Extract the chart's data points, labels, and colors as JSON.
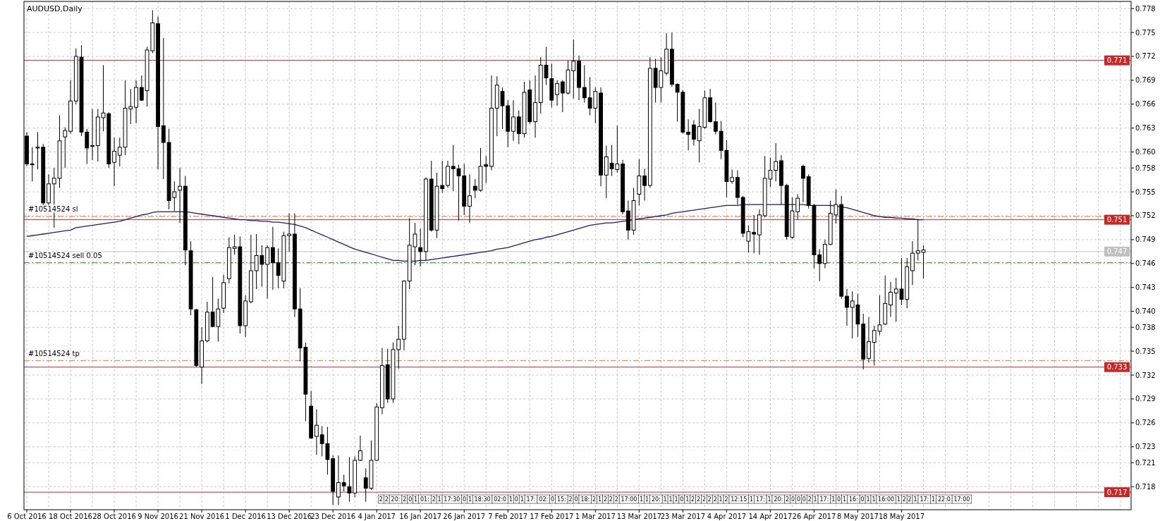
{
  "chart_data": {
    "type": "candlestick",
    "title": "AUDUSD,Daily",
    "categories": [
      "6 Oct 2016",
      null,
      null,
      null,
      null,
      null,
      null,
      null,
      "18 Oct 2016",
      null,
      null,
      null,
      null,
      null,
      null,
      null,
      "28 Oct 2016",
      null,
      null,
      null,
      null,
      null,
      null,
      null,
      "9 Nov 2016",
      null,
      null,
      null,
      null,
      null,
      null,
      null,
      "21 Nov 2016",
      null,
      null,
      null,
      null,
      null,
      null,
      null,
      "1 Dec 2016",
      null,
      null,
      null,
      null,
      null,
      null,
      null,
      "13 Dec 2016",
      null,
      null,
      null,
      null,
      null,
      null,
      null,
      "23 Dec 2016",
      null,
      null,
      null,
      null,
      null,
      null,
      null,
      "4 Jan 2017",
      null,
      null,
      null,
      null,
      null,
      null,
      null,
      "16 Jan 2017",
      null,
      null,
      null,
      null,
      null,
      null,
      null,
      "26 Jan 2017",
      null,
      null,
      null,
      null,
      null,
      null,
      null,
      "7 Feb 2017",
      null,
      null,
      null,
      null,
      null,
      null,
      null,
      "17 Feb 2017",
      null,
      null,
      null,
      null,
      null,
      null,
      null,
      "1 Mar 2017",
      null,
      null,
      null,
      null,
      null,
      null,
      null,
      "13 Mar 2017",
      null,
      null,
      null,
      null,
      null,
      null,
      null,
      "23 Mar 2017",
      null,
      null,
      null,
      null,
      null,
      null,
      null,
      "4 Apr 2017",
      null,
      null,
      null,
      null,
      null,
      null,
      null,
      "14 Apr 2017",
      null,
      null,
      null,
      null,
      null,
      null,
      null,
      "26 Apr 2017",
      null,
      null,
      null,
      null,
      null,
      null,
      null,
      "8 May 2017",
      null,
      null,
      null,
      null,
      null,
      null,
      null,
      "18 May 2017",
      null,
      null,
      null,
      null
    ],
    "ohlc": [
      [
        0.762,
        0.7625,
        0.7582,
        0.7585
      ],
      [
        0.7585,
        0.7606,
        0.7563,
        0.7584
      ],
      [
        0.7606,
        0.7625,
        0.7578,
        0.7605
      ],
      [
        0.7606,
        0.761,
        0.7532,
        0.7536
      ],
      [
        0.7536,
        0.7572,
        0.7533,
        0.756
      ],
      [
        0.756,
        0.758,
        0.7505,
        0.7567
      ],
      [
        0.7567,
        0.7646,
        0.7555,
        0.7614
      ],
      [
        0.7619,
        0.7631,
        0.758,
        0.7627
      ],
      [
        0.7626,
        0.769,
        0.7623,
        0.7664
      ],
      [
        0.7664,
        0.773,
        0.766,
        0.772
      ],
      [
        0.7719,
        0.7734,
        0.762,
        0.7625
      ],
      [
        0.7625,
        0.7629,
        0.7585,
        0.7605
      ],
      [
        0.7607,
        0.7654,
        0.759,
        0.7608
      ],
      [
        0.7608,
        0.7654,
        0.7588,
        0.7644
      ],
      [
        0.7643,
        0.7709,
        0.7626,
        0.7649
      ],
      [
        0.7648,
        0.765,
        0.758,
        0.7585
      ],
      [
        0.7587,
        0.7618,
        0.7557,
        0.7601
      ],
      [
        0.7596,
        0.7618,
        0.7582,
        0.7606
      ],
      [
        0.7606,
        0.769,
        0.7596,
        0.7655
      ],
      [
        0.7654,
        0.7679,
        0.7635,
        0.7657
      ],
      [
        0.7656,
        0.769,
        0.7636,
        0.7681
      ],
      [
        0.7681,
        0.7696,
        0.7664,
        0.7665
      ],
      [
        0.7677,
        0.7732,
        0.7657,
        0.7728
      ],
      [
        0.7727,
        0.7778,
        0.7724,
        0.7762
      ],
      [
        0.7761,
        0.777,
        0.7578,
        0.7632
      ],
      [
        0.7633,
        0.7743,
        0.7566,
        0.7612
      ],
      [
        0.7612,
        0.7629,
        0.7528,
        0.7539
      ],
      [
        0.7543,
        0.7563,
        0.7526,
        0.755
      ],
      [
        0.7552,
        0.758,
        0.7511,
        0.7557
      ],
      [
        0.7557,
        0.757,
        0.7458,
        0.7477
      ],
      [
        0.7476,
        0.7488,
        0.7395,
        0.7403
      ],
      [
        0.7402,
        0.7403,
        0.733,
        0.7332
      ],
      [
        0.733,
        0.738,
        0.7309,
        0.7363
      ],
      [
        0.7363,
        0.7412,
        0.7361,
        0.7399
      ],
      [
        0.7399,
        0.7443,
        0.738,
        0.7381
      ],
      [
        0.7381,
        0.7416,
        0.7362,
        0.7403
      ],
      [
        0.7404,
        0.7446,
        0.7398,
        0.7436
      ],
      [
        0.7441,
        0.7493,
        0.7435,
        0.748
      ],
      [
        0.7479,
        0.7496,
        0.7471,
        0.7481
      ],
      [
        0.7481,
        0.7494,
        0.7372,
        0.7382
      ],
      [
        0.7382,
        0.742,
        0.7368,
        0.7413
      ],
      [
        0.7412,
        0.7496,
        0.741,
        0.7451
      ],
      [
        0.7451,
        0.7497,
        0.7428,
        0.747
      ],
      [
        0.747,
        0.7483,
        0.7431,
        0.7459
      ],
      [
        0.7459,
        0.7483,
        0.7416,
        0.748
      ],
      [
        0.748,
        0.7506,
        0.7427,
        0.7461
      ],
      [
        0.7461,
        0.7479,
        0.7429,
        0.7445
      ],
      [
        0.7438,
        0.75,
        0.7429,
        0.7495
      ],
      [
        0.7495,
        0.7523,
        0.7475,
        0.7497
      ],
      [
        0.7497,
        0.7523,
        0.7393,
        0.7403
      ],
      [
        0.7403,
        0.7429,
        0.7337,
        0.7354
      ],
      [
        0.7355,
        0.7361,
        0.7262,
        0.7296
      ],
      [
        0.7281,
        0.73,
        0.724,
        0.7241
      ],
      [
        0.7243,
        0.7277,
        0.722,
        0.7257
      ],
      [
        0.7245,
        0.7256,
        0.7218,
        0.7234
      ],
      [
        0.7234,
        0.7255,
        0.7195,
        0.7214
      ],
      [
        0.7215,
        0.7219,
        0.7157,
        0.7174
      ],
      [
        0.7167,
        0.7219,
        0.7157,
        0.7185
      ],
      [
        0.7185,
        0.7195,
        0.7174,
        0.7181
      ],
      [
        0.718,
        0.7217,
        0.7161,
        0.7172
      ],
      [
        0.7172,
        0.7218,
        0.7167,
        0.7213
      ],
      [
        0.7213,
        0.7244,
        0.7212,
        0.7225
      ],
      [
        0.7191,
        0.7203,
        0.7161,
        0.7178
      ],
      [
        0.7178,
        0.7238,
        0.7176,
        0.7213
      ],
      [
        0.7213,
        0.7285,
        0.7212,
        0.728
      ],
      [
        0.7279,
        0.7354,
        0.7271,
        0.7332
      ],
      [
        0.7333,
        0.7353,
        0.7285,
        0.729
      ],
      [
        0.729,
        0.7361,
        0.7285,
        0.7352
      ],
      [
        0.7352,
        0.7382,
        0.7328,
        0.7365
      ],
      [
        0.7365,
        0.7439,
        0.7351,
        0.7438
      ],
      [
        0.7438,
        0.7517,
        0.7428,
        0.7483
      ],
      [
        0.7481,
        0.7511,
        0.7458,
        0.7497
      ],
      [
        0.748,
        0.7504,
        0.7456,
        0.7475
      ],
      [
        0.7475,
        0.7568,
        0.7464,
        0.7566
      ],
      [
        0.7566,
        0.7589,
        0.75,
        0.7502
      ],
      [
        0.7502,
        0.7574,
        0.7492,
        0.7557
      ],
      [
        0.7558,
        0.7589,
        0.7549,
        0.7554
      ],
      [
        0.7558,
        0.7589,
        0.7555,
        0.7582
      ],
      [
        0.7582,
        0.7609,
        0.7551,
        0.7579
      ],
      [
        0.7579,
        0.7584,
        0.7514,
        0.757
      ],
      [
        0.757,
        0.7585,
        0.7521,
        0.7532
      ],
      [
        0.7532,
        0.7572,
        0.7511,
        0.7545
      ],
      [
        0.7557,
        0.7566,
        0.7542,
        0.7552
      ],
      [
        0.7552,
        0.7605,
        0.755,
        0.7582
      ],
      [
        0.7584,
        0.7595,
        0.7561,
        0.7582
      ],
      [
        0.7582,
        0.7696,
        0.7577,
        0.7655
      ],
      [
        0.7655,
        0.7695,
        0.762,
        0.7684
      ],
      [
        0.7676,
        0.7681,
        0.7629,
        0.7658
      ],
      [
        0.7658,
        0.7665,
        0.7606,
        0.7626
      ],
      [
        0.7626,
        0.7665,
        0.7614,
        0.7644
      ],
      [
        0.7644,
        0.7652,
        0.761,
        0.7623
      ],
      [
        0.7623,
        0.7688,
        0.7618,
        0.7675
      ],
      [
        0.7678,
        0.769,
        0.7635,
        0.7638
      ],
      [
        0.7638,
        0.7696,
        0.7618,
        0.7662
      ],
      [
        0.7662,
        0.7719,
        0.7648,
        0.7709
      ],
      [
        0.7709,
        0.7732,
        0.7684,
        0.7693
      ],
      [
        0.7692,
        0.7711,
        0.7656,
        0.7665
      ],
      [
        0.7672,
        0.769,
        0.7658,
        0.7686
      ],
      [
        0.7688,
        0.769,
        0.765,
        0.7674
      ],
      [
        0.7674,
        0.7715,
        0.7672,
        0.7703
      ],
      [
        0.7702,
        0.7741,
        0.7667,
        0.7714
      ],
      [
        0.7714,
        0.7721,
        0.7665,
        0.7681
      ],
      [
        0.7681,
        0.7709,
        0.7662,
        0.7668
      ],
      [
        0.7668,
        0.7694,
        0.7646,
        0.7655
      ],
      [
        0.7655,
        0.7681,
        0.7636,
        0.7676
      ],
      [
        0.7674,
        0.7681,
        0.7557,
        0.7571
      ],
      [
        0.7571,
        0.7608,
        0.7542,
        0.7594
      ],
      [
        0.7586,
        0.7609,
        0.757,
        0.7579
      ],
      [
        0.7578,
        0.7633,
        0.7574,
        0.7585
      ],
      [
        0.7585,
        0.759,
        0.7522,
        0.7525
      ],
      [
        0.7526,
        0.7539,
        0.749,
        0.7502
      ],
      [
        0.7502,
        0.7555,
        0.7496,
        0.7539
      ],
      [
        0.7547,
        0.7591,
        0.7533,
        0.757
      ],
      [
        0.757,
        0.7579,
        0.7539,
        0.7558
      ],
      [
        0.7558,
        0.7719,
        0.7555,
        0.7705
      ],
      [
        0.7705,
        0.7717,
        0.7662,
        0.7681
      ],
      [
        0.7681,
        0.7719,
        0.7662,
        0.7702
      ],
      [
        0.7699,
        0.7749,
        0.7696,
        0.7729
      ],
      [
        0.7729,
        0.775,
        0.7682,
        0.7685
      ],
      [
        0.7685,
        0.7686,
        0.7638,
        0.7675
      ],
      [
        0.7675,
        0.7678,
        0.7623,
        0.7625
      ],
      [
        0.7625,
        0.7641,
        0.7602,
        0.7622
      ],
      [
        0.7634,
        0.764,
        0.7608,
        0.7616
      ],
      [
        0.7614,
        0.7654,
        0.7587,
        0.7632
      ],
      [
        0.7631,
        0.7677,
        0.7629,
        0.7668
      ],
      [
        0.7668,
        0.7679,
        0.7637,
        0.7638
      ],
      [
        0.7638,
        0.7662,
        0.7622,
        0.7626
      ],
      [
        0.7626,
        0.7639,
        0.7591,
        0.7602
      ],
      [
        0.7602,
        0.7615,
        0.7543,
        0.7563
      ],
      [
        0.7563,
        0.7578,
        0.756,
        0.7568
      ],
      [
        0.7568,
        0.7577,
        0.7534,
        0.7543
      ],
      [
        0.7543,
        0.7545,
        0.7493,
        0.7498
      ],
      [
        0.7488,
        0.7508,
        0.7474,
        0.75
      ],
      [
        0.7499,
        0.7521,
        0.7473,
        0.7497
      ],
      [
        0.7496,
        0.7528,
        0.7471,
        0.7521
      ],
      [
        0.752,
        0.7595,
        0.7518,
        0.7567
      ],
      [
        0.7566,
        0.7593,
        0.7556,
        0.7577
      ],
      [
        0.7577,
        0.7611,
        0.7563,
        0.7588
      ],
      [
        0.7589,
        0.7596,
        0.7534,
        0.7558
      ],
      [
        0.7558,
        0.756,
        0.749,
        0.7494
      ],
      [
        0.7493,
        0.7543,
        0.7491,
        0.7526
      ],
      [
        0.7525,
        0.7547,
        0.7515,
        0.7542
      ],
      [
        0.7582,
        0.7584,
        0.7537,
        0.7567
      ],
      [
        0.7569,
        0.7572,
        0.7529,
        0.7533
      ],
      [
        0.7533,
        0.7535,
        0.7454,
        0.7471
      ],
      [
        0.7471,
        0.7478,
        0.7438,
        0.746
      ],
      [
        0.746,
        0.749,
        0.7454,
        0.7484
      ],
      [
        0.7484,
        0.7539,
        0.7483,
        0.7523
      ],
      [
        0.7521,
        0.7553,
        0.751,
        0.7534
      ],
      [
        0.7534,
        0.7545,
        0.7416,
        0.7419
      ],
      [
        0.7419,
        0.7428,
        0.7382,
        0.7405
      ],
      [
        0.7405,
        0.7425,
        0.7366,
        0.7413
      ],
      [
        0.7408,
        0.7422,
        0.7368,
        0.7384
      ],
      [
        0.7384,
        0.7397,
        0.7327,
        0.734
      ],
      [
        0.7341,
        0.7393,
        0.7336,
        0.7362
      ],
      [
        0.7361,
        0.7382,
        0.7332,
        0.7376
      ],
      [
        0.7375,
        0.742,
        0.737,
        0.7383
      ],
      [
        0.7384,
        0.7445,
        0.7383,
        0.741
      ],
      [
        0.7408,
        0.7437,
        0.7393,
        0.7424
      ],
      [
        0.7423,
        0.7442,
        0.7387,
        0.7428
      ],
      [
        0.7428,
        0.7467,
        0.7408,
        0.7415
      ],
      [
        0.7415,
        0.7467,
        0.7404,
        0.7456
      ],
      [
        0.7451,
        0.7488,
        0.7433,
        0.7473
      ],
      [
        0.7473,
        0.7516,
        0.7464,
        0.7476
      ],
      [
        0.7474,
        0.7483,
        0.7441,
        0.7477
      ]
    ],
    "series": [
      {
        "type": "line",
        "color": "#1c1c6b",
        "values": [
          0.7494,
          0.7495,
          0.7496,
          0.7497,
          0.7498,
          0.7499,
          0.75,
          0.7501,
          0.7502,
          0.7505,
          0.7506,
          0.7507,
          0.7508,
          0.7509,
          0.751,
          0.7511,
          0.7512,
          0.7513,
          0.7515,
          0.7517,
          0.7519,
          0.7521,
          0.7522,
          0.7524,
          0.7525,
          0.7525,
          0.7525,
          0.7525,
          0.7525,
          0.7525,
          0.7524,
          0.7523,
          0.7522,
          0.7521,
          0.752,
          0.7519,
          0.7518,
          0.7517,
          0.7516,
          0.7515,
          0.7515,
          0.7514,
          0.7514,
          0.7513,
          0.7513,
          0.7512,
          0.7512,
          0.7511,
          0.751,
          0.7509,
          0.7507,
          0.7505,
          0.7502,
          0.7499,
          0.7496,
          0.7493,
          0.749,
          0.7487,
          0.7484,
          0.7481,
          0.7478,
          0.7476,
          0.7474,
          0.7472,
          0.747,
          0.7468,
          0.7466,
          0.7464,
          0.7464,
          0.7463,
          0.7463,
          0.7463,
          0.7464,
          0.7464,
          0.7465,
          0.7466,
          0.7467,
          0.7468,
          0.7469,
          0.747,
          0.7471,
          0.7472,
          0.7473,
          0.7474,
          0.7475,
          0.7476,
          0.7478,
          0.7479,
          0.748,
          0.7482,
          0.7484,
          0.7486,
          0.7488,
          0.749,
          0.7491,
          0.7493,
          0.7494,
          0.7496,
          0.7498,
          0.75,
          0.7502,
          0.7504,
          0.7506,
          0.7508,
          0.7509,
          0.751,
          0.7511,
          0.7511,
          0.7512,
          0.7513,
          0.7514,
          0.7515,
          0.7516,
          0.7517,
          0.7518,
          0.7519,
          0.752,
          0.7521,
          0.7523,
          0.7524,
          0.7525,
          0.7526,
          0.7527,
          0.7528,
          0.7529,
          0.753,
          0.7531,
          0.7532,
          0.7533,
          0.7533,
          0.7533,
          0.7534,
          0.7534,
          0.7534,
          0.7534,
          0.7534,
          0.7534,
          0.7534,
          0.7534,
          0.7534,
          0.7534,
          0.7534,
          0.7534,
          0.7533,
          0.7533,
          0.7533,
          0.7533,
          0.7533,
          0.7532,
          0.7531,
          0.753,
          0.7528,
          0.7526,
          0.7524,
          0.7522,
          0.752,
          0.7519,
          0.7518,
          0.7518,
          0.7517,
          0.7517,
          0.7516,
          0.7516,
          0.7515,
          0.7515
        ]
      }
    ],
    "ylim": [
      0.7151,
      0.7789
    ],
    "yticks": [
      {
        "value": 0.778,
        "label": "0.778"
      },
      {
        "value": 0.775,
        "label": "0.775"
      },
      {
        "value": 0.772,
        "label": "0.772"
      },
      {
        "value": 0.769,
        "label": "0.769"
      },
      {
        "value": 0.766,
        "label": "0.766"
      },
      {
        "value": 0.763,
        "label": "0.763"
      },
      {
        "value": 0.76,
        "label": "0.760"
      },
      {
        "value": 0.758,
        "label": "0.758"
      },
      {
        "value": 0.755,
        "label": "0.755"
      },
      {
        "value": 0.752,
        "label": "0.752"
      },
      {
        "value": 0.749,
        "label": "0.749"
      },
      {
        "value": 0.746,
        "label": "0.746"
      },
      {
        "value": 0.743,
        "label": "0.743"
      },
      {
        "value": 0.74,
        "label": "0.740"
      },
      {
        "value": 0.738,
        "label": "0.738"
      },
      {
        "value": 0.735,
        "label": "0.735"
      },
      {
        "value": 0.732,
        "label": "0.732"
      },
      {
        "value": 0.729,
        "label": "0.729"
      },
      {
        "value": 0.726,
        "label": "0.726"
      },
      {
        "value": 0.723,
        "label": "0.723"
      },
      {
        "value": 0.721,
        "label": "0.721"
      },
      {
        "value": 0.718,
        "label": "0.718"
      }
    ],
    "grid": true,
    "ref_lines": [
      {
        "axis": "y",
        "value": 0.7715,
        "label": "0.771",
        "color": "#c62828",
        "line_style": "solid"
      },
      {
        "axis": "y",
        "value": 0.7515,
        "label": "0.751",
        "color": "#c62828",
        "line_style": "solid"
      },
      {
        "axis": "y",
        "value": 0.733,
        "label": "0.733",
        "color": "#c62828",
        "line_style": "solid"
      },
      {
        "axis": "y",
        "value": 0.7173,
        "label": "0.717",
        "color": "#c62828",
        "line_style": "solid"
      },
      {
        "axis": "y",
        "value": 0.7475,
        "label": "0.747",
        "color": "#c0c0c0",
        "line_style": "solid"
      },
      {
        "axis": "y",
        "value": 0.7519,
        "label": "#10514524 sl",
        "color": "#e0773a",
        "line_style": "dashed"
      },
      {
        "axis": "y",
        "value": 0.7461,
        "label": "#10514524 sell 0.05",
        "color": "#2e8b2e",
        "line_style": "dashed"
      },
      {
        "axis": "y",
        "value": 0.7338,
        "label": "#10514524 tp",
        "color": "#e0773a",
        "line_style": "dashed"
      }
    ],
    "annotations": [
      "2",
      "2",
      "20:",
      "2",
      "0",
      "1",
      "01:",
      "2",
      "1",
      "17:30",
      "0",
      "1",
      "18:30",
      "02:0",
      "1",
      "0",
      "1",
      "17:",
      "02:",
      "0",
      "15:",
      "2",
      "0",
      "18:",
      "2",
      "1",
      "2",
      "2",
      "2",
      "17:00",
      "1",
      "1",
      "20:",
      "1",
      "1",
      "1",
      "0",
      "1",
      "2",
      "2",
      "2",
      "2",
      "2",
      "1",
      "2",
      "12:15",
      "1",
      "17:",
      "1",
      "20:",
      "2",
      "0",
      "0",
      "0",
      "2",
      "1",
      "17:",
      "1",
      "0",
      "1",
      "16:",
      "0",
      "1",
      "1",
      "16:00",
      "1",
      "2",
      "2",
      "1",
      "17:",
      "1",
      "22:0",
      "17:00"
    ]
  }
}
